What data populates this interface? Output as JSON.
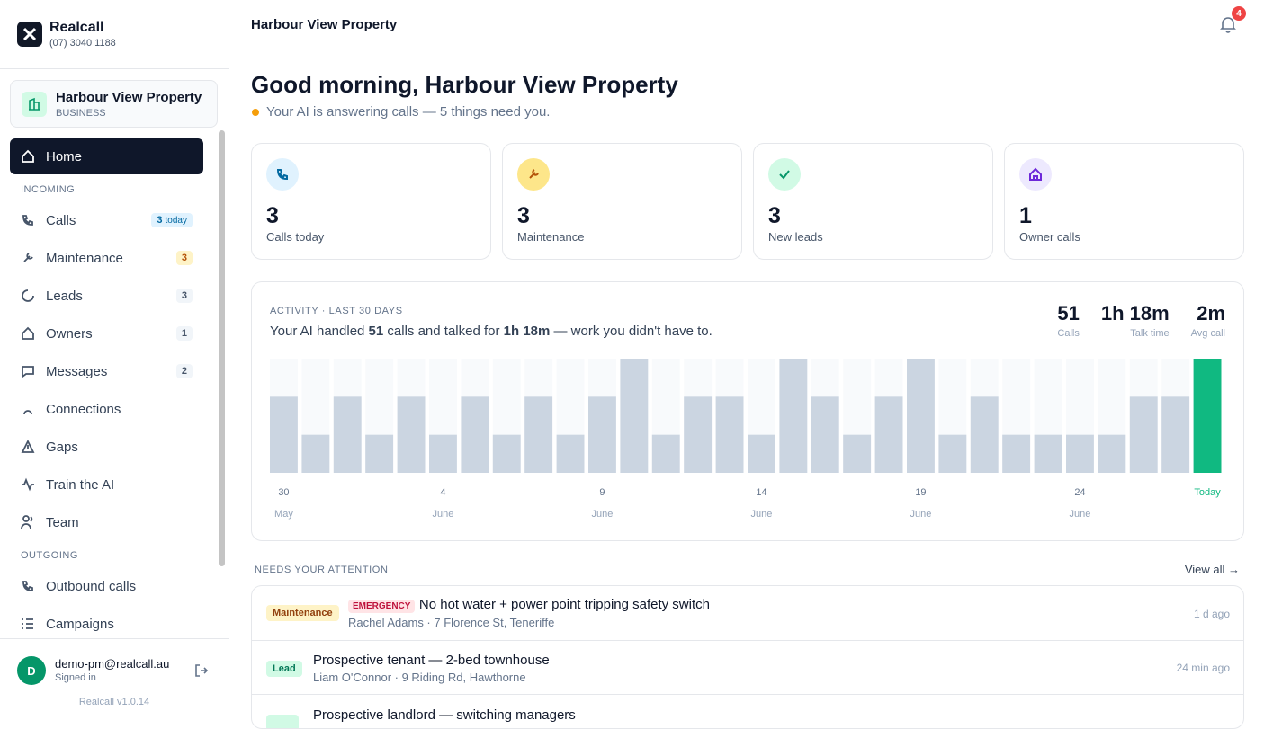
{
  "sidebar": {
    "brand": "Realcall",
    "phone": "(07) 3040 1188",
    "account": {
      "name": "Harbour View Property",
      "type": "BUSINESS"
    },
    "nav": {
      "home": "Home",
      "incoming_heading": "INCOMING",
      "incoming": [
        {
          "label": "Calls",
          "badge": 3,
          "badge_note": "today"
        },
        {
          "label": "Maintenance",
          "badge": 3
        },
        {
          "label": "Leads",
          "badge": 3
        },
        {
          "label": "Owners",
          "badge": 1
        },
        {
          "label": "Messages",
          "badge": 2
        },
        {
          "label": "Connections"
        },
        {
          "label": "Gaps"
        },
        {
          "label": "Train the AI"
        },
        {
          "label": "Team"
        }
      ],
      "outgoing_heading": "OUTGOING",
      "outgoing": [
        {
          "label": "Outbound calls"
        },
        {
          "label": "Campaigns"
        }
      ]
    },
    "user": {
      "avatar": "D",
      "email": "demo-pm@realcall.au",
      "status": "Signed in"
    },
    "version": "Realcall v1.0.14"
  },
  "header": {
    "title": "Harbour View Property",
    "notifications": 4
  },
  "greeting": {
    "title": "Good morning, Harbour View Property",
    "subtitle": "Your AI is answering calls — 5 things need you."
  },
  "stats": [
    {
      "value": 3,
      "label": "Calls today"
    },
    {
      "value": 3,
      "label": "Maintenance"
    },
    {
      "value": 3,
      "label": "New leads"
    },
    {
      "value": 1,
      "label": "Owner calls"
    }
  ],
  "activity": {
    "heading": "ACTIVITY · LAST 30 DAYS",
    "summary": [
      "Your AI handled ",
      "51",
      " calls and talked for ",
      "1h 18m",
      " — work you didn't have to."
    ],
    "metrics": [
      {
        "value": "51",
        "label": "Calls"
      },
      {
        "value": "1h 18m",
        "label": "Talk time"
      },
      {
        "value": "2m",
        "label": "Avg call"
      }
    ]
  },
  "chart_data": {
    "type": "bar",
    "categories": [
      "30",
      null,
      null,
      null,
      null,
      "4",
      null,
      null,
      null,
      null,
      "9",
      null,
      null,
      null,
      null,
      "14",
      null,
      null,
      null,
      null,
      "19",
      null,
      null,
      null,
      null,
      "24",
      null,
      null,
      null,
      "Today"
    ],
    "category_sublabels": [
      "May",
      null,
      null,
      null,
      null,
      "June",
      null,
      null,
      null,
      null,
      "June",
      null,
      null,
      null,
      null,
      "June",
      null,
      null,
      null,
      null,
      "June",
      null,
      null,
      null,
      null,
      "June",
      null,
      null,
      null,
      null
    ],
    "values": [
      2,
      1,
      2,
      1,
      2,
      1,
      2,
      1,
      2,
      1,
      2,
      3,
      1,
      2,
      2,
      1,
      3,
      2,
      1,
      2,
      3,
      1,
      2,
      1,
      1,
      1,
      1,
      2,
      2,
      3
    ],
    "color": "#cbd5e1",
    "highlight_color": "#10b981",
    "highlight_last": true,
    "ylim": [
      0,
      3
    ]
  },
  "attention": {
    "heading": "NEEDS YOUR ATTENTION",
    "view_all": "View all →",
    "items": [
      {
        "tag": "Maintenance",
        "flag": "EMERGENCY",
        "title": "No hot water + power point tripping safety switch",
        "detail": "Rachel Adams · 7 Florence St, Teneriffe",
        "time": "1 d ago"
      },
      {
        "tag": "Lead",
        "title": "Prospective tenant — 2-bed townhouse",
        "detail": "Liam O'Connor · 9 Riding Rd, Hawthorne",
        "time": "24 min ago"
      },
      {
        "title": "Prospective landlord — switching managers"
      }
    ]
  }
}
